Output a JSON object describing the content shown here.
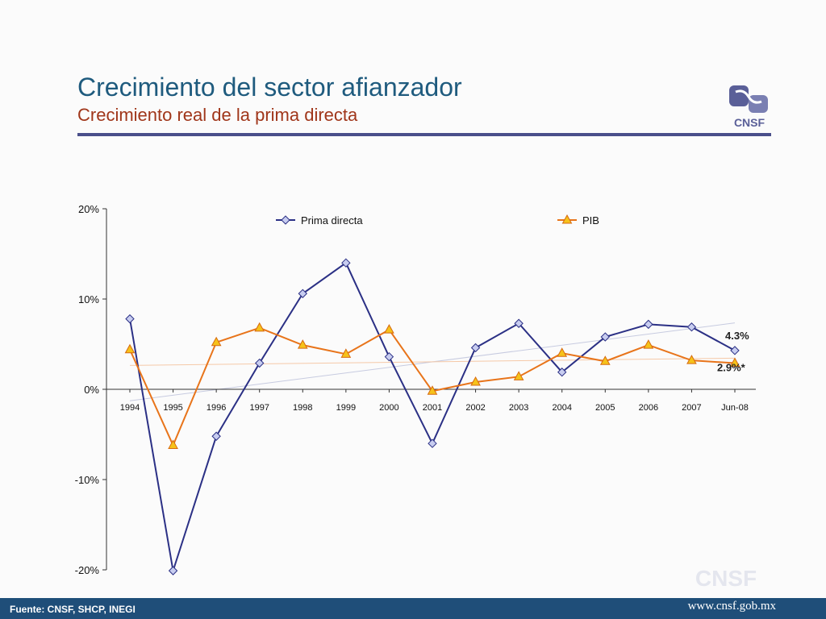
{
  "header": {
    "title": "Crecimiento del sector afianzador",
    "subtitle": "Crecimiento real de la prima directa"
  },
  "logo": {
    "text": "CNSF",
    "icon": "cnsf-logo-icon",
    "color": "#5a5f98"
  },
  "watermark": {
    "text": "CNSF"
  },
  "footer": {
    "source": "Fuente: CNSF, SHCP, INEGI",
    "url": "www.cnsf.gob.mx",
    "background": "#1f4e79"
  },
  "chart_data": {
    "type": "line",
    "categories": [
      "1994",
      "1995",
      "1996",
      "1997",
      "1998",
      "1999",
      "2000",
      "2001",
      "2002",
      "2003",
      "2004",
      "2005",
      "2006",
      "2007",
      "Jun-08"
    ],
    "ylim": [
      -20,
      20
    ],
    "yticks": [
      -20,
      -10,
      0,
      10,
      20
    ],
    "ytick_labels": [
      "-20%",
      "-10%",
      "0%",
      "10%",
      "20%"
    ],
    "legend_position": "top",
    "grid": false,
    "series": [
      {
        "name": "Prima directa",
        "color": "#2b3085",
        "marker": "diamond",
        "values": [
          7.8,
          -20.1,
          -5.2,
          2.9,
          10.6,
          14.0,
          3.6,
          -6.0,
          4.6,
          7.3,
          1.9,
          5.8,
          7.2,
          6.9,
          4.3
        ]
      },
      {
        "name": "PIB",
        "color": "#e8741a",
        "marker": "triangle",
        "values": [
          4.4,
          -6.2,
          5.2,
          6.8,
          4.9,
          3.9,
          6.6,
          -0.2,
          0.8,
          1.4,
          4.0,
          3.1,
          4.9,
          3.2,
          2.9
        ]
      }
    ],
    "annotations": [
      {
        "text": "4.3%",
        "series": 0,
        "point": 14
      },
      {
        "text": "2.9%*",
        "series": 1,
        "point": 14
      }
    ],
    "trendlines": [
      {
        "series": 0,
        "color": "#c7cbe0"
      },
      {
        "series": 1,
        "color": "#f5c9a8"
      }
    ]
  }
}
